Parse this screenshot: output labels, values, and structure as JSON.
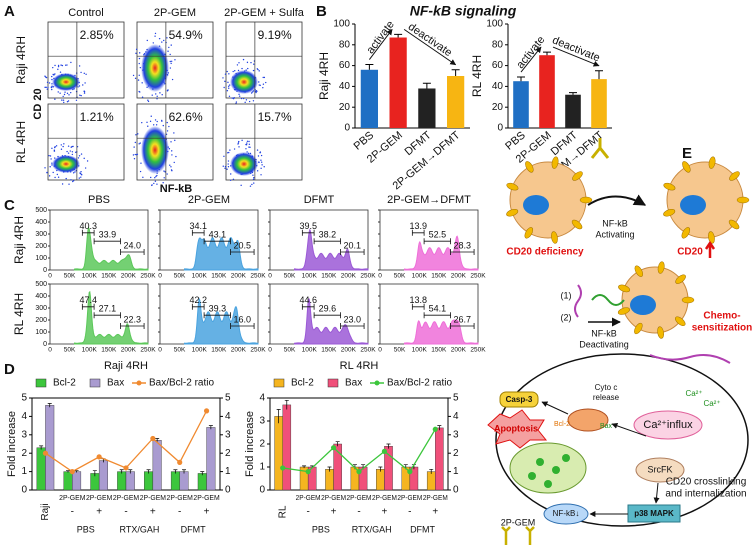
{
  "panel_labels": [
    "A",
    "B",
    "C",
    "D",
    "E"
  ],
  "flow": {
    "columns": [
      "Control",
      "2P-GEM",
      "2P-GEM + Sulfa"
    ],
    "rows": [
      "Raji 4RH",
      "RL 4RH"
    ],
    "y_label": "CD 20",
    "x_label": "NF-kB",
    "percents": [
      [
        "2.85%",
        "54.9%",
        "9.19%"
      ],
      [
        "1.21%",
        "62.6%",
        "15.7%"
      ]
    ]
  },
  "chart_data": [
    {
      "type": "bar",
      "title": "NF-kB signaling",
      "y_label": "Raji 4RH",
      "categories": [
        "PBS",
        "2P-GEM",
        "DFMT",
        "2P-GEM→DFMT"
      ],
      "values": [
        56,
        87,
        38,
        50
      ],
      "errors": [
        5,
        3,
        5,
        6
      ],
      "colors": [
        "#1f6fc4",
        "#e8231f",
        "#222222",
        "#f7b512"
      ],
      "annotations": [
        "activate",
        "deactivate"
      ],
      "ylim": [
        0,
        100
      ],
      "yticks": [
        0,
        20,
        40,
        60,
        80,
        100
      ]
    },
    {
      "type": "bar",
      "y_label": "RL 4RH",
      "categories": [
        "PBS",
        "2P-GEM",
        "DFMT",
        "2P-GEM→DFMT"
      ],
      "values": [
        45,
        70,
        32,
        47
      ],
      "errors": [
        4,
        3,
        2,
        8
      ],
      "colors": [
        "#1f6fc4",
        "#e8231f",
        "#222222",
        "#f7b512"
      ],
      "annotations": [
        "activate",
        "deactivate"
      ],
      "ylim": [
        0,
        100
      ],
      "yticks": [
        0,
        20,
        40,
        60,
        80,
        100
      ]
    },
    {
      "type": "bar",
      "title": "Raji 4RH",
      "y_label": "Fold increase",
      "categories": [
        "Raji",
        "2P-GEM",
        "2P-GEM",
        "2P-GEM",
        "2P-GEM",
        "2P-GEM",
        "2P-GEM"
      ],
      "signs": [
        null,
        "-",
        "+",
        "-",
        "+",
        "-",
        "+"
      ],
      "groups": [
        "PBS",
        "RTX/GAH",
        "DFMT"
      ],
      "series": [
        {
          "name": "Bcl-2",
          "color": "#3cc63c",
          "values": [
            2.3,
            1.0,
            0.9,
            1.0,
            1.0,
            1.0,
            0.9
          ],
          "errors": [
            0.1,
            0.05,
            0.15,
            0.1,
            0.1,
            0.1,
            0.1
          ]
        },
        {
          "name": "Bax",
          "color": "#a99bd0",
          "values": [
            4.6,
            1.0,
            1.6,
            1.0,
            2.7,
            1.0,
            3.4
          ],
          "errors": [
            0.1,
            0.05,
            0.1,
            0.1,
            0.1,
            0.1,
            0.1
          ]
        },
        {
          "name": "Bax/Bcl-2 ratio",
          "color": "#f08a30",
          "axis": "y2",
          "values": [
            2.0,
            1.0,
            1.8,
            1.2,
            2.8,
            1.5,
            4.3
          ]
        }
      ],
      "ylim": [
        0,
        5
      ],
      "yticks": [
        0,
        1,
        2,
        3,
        4,
        5
      ],
      "y2lim": [
        0,
        5
      ],
      "y2ticks": [
        0,
        1,
        2,
        3,
        4,
        5
      ]
    },
    {
      "type": "bar",
      "title": "RL 4RH",
      "y_label": "Fold increase",
      "categories": [
        "RL",
        "2P-GEM",
        "2P-GEM",
        "2P-GEM",
        "2P-GEM",
        "2P-GEM",
        "2P-GEM"
      ],
      "signs": [
        null,
        "-",
        "+",
        "-",
        "+",
        "-",
        "+"
      ],
      "groups": [
        "PBS",
        "RTX/GAH",
        "DFMT"
      ],
      "series": [
        {
          "name": "Bcl-2",
          "color": "#f5b520",
          "values": [
            3.2,
            1.0,
            0.9,
            1.0,
            0.9,
            1.0,
            0.8
          ],
          "errors": [
            0.3,
            0.05,
            0.1,
            0.1,
            0.1,
            0.1,
            0.1
          ]
        },
        {
          "name": "Bax",
          "color": "#f0507a",
          "values": [
            3.7,
            1.0,
            2.0,
            1.0,
            1.9,
            1.0,
            2.7
          ],
          "errors": [
            0.2,
            0.05,
            0.1,
            0.1,
            0.1,
            0.1,
            0.1
          ]
        },
        {
          "name": "Bax/Bcl-2 ratio",
          "color": "#3cc63c",
          "axis": "y2",
          "values": [
            1.2,
            1.0,
            2.3,
            1.0,
            2.1,
            1.0,
            3.3
          ]
        }
      ],
      "ylim": [
        0,
        4
      ],
      "yticks": [
        0,
        1,
        2,
        3,
        4
      ],
      "y2lim": [
        0,
        5
      ],
      "y2ticks": [
        0,
        1,
        2,
        3,
        4,
        5
      ]
    }
  ],
  "cycle": {
    "columns": [
      "PBS",
      "2P-GEM",
      "DFMT",
      "2P-GEM→DFMT"
    ],
    "rows": [
      "Raji 4RH",
      "RL 4RH"
    ],
    "colors": [
      "#5cc85a",
      "#4aa3df",
      "#9b59d6",
      "#ee6fd8"
    ],
    "yticks": [
      0,
      100,
      200,
      300,
      400,
      500
    ],
    "xticks": [
      "0",
      "50K",
      "100K",
      "150K",
      "200K",
      "250K"
    ],
    "values": [
      [
        [
          "40.3",
          "33.9",
          "24.0"
        ],
        [
          "34.1",
          "43.1",
          "20.5"
        ],
        [
          "39.5",
          "38.2",
          "20.1"
        ],
        [
          "13.9",
          "52.5",
          "28.3"
        ]
      ],
      [
        [
          "47.4",
          "27.1",
          "22.3"
        ],
        [
          "42.2",
          "39.3",
          "16.0"
        ],
        [
          "44.6",
          "29.6",
          "23.0"
        ],
        [
          "13.8",
          "54.1",
          "26.7"
        ]
      ]
    ]
  },
  "diagram": {
    "activating": [
      "NF-kB",
      "Activating"
    ],
    "cd20_deficiency": "CD20 deficiency",
    "cd20": "CD20",
    "step1": "(1)",
    "step2": "(2)",
    "deactivating": [
      "NF-kB",
      "Deactivating"
    ],
    "chemo": [
      "Chemo-",
      "sensitization"
    ],
    "casp3": "Casp-3",
    "cyto_c": [
      "Cyto c",
      "release"
    ],
    "apoptosis": "Apoptosis",
    "bcl2": "Bcl-2",
    "bax": "Bax",
    "ca_influx": "Ca²⁺influx",
    "ca": [
      "Ca²⁺",
      "Ca²⁺"
    ],
    "srcfk": "SrcFK",
    "nfkb_down": "NF-kB↓",
    "p38": "p38 MAPK",
    "crosslinking": [
      "CD20 crosslinking",
      "and internalization"
    ],
    "drug": "2P-GEM"
  }
}
